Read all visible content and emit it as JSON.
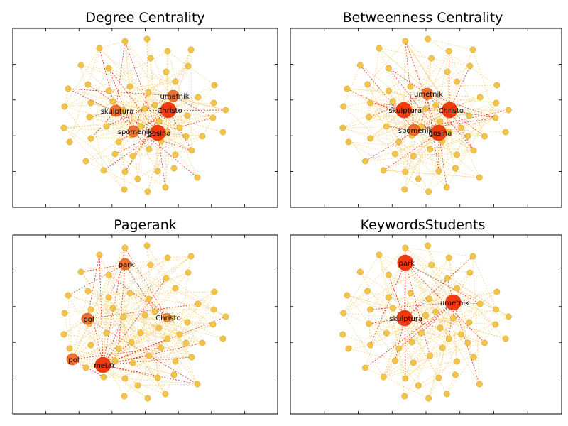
{
  "chart_data": [
    {
      "type": "network",
      "title": "Degree Centrality",
      "highlights": [
        {
          "label": "Christo",
          "size": "large"
        },
        {
          "label": "gosina",
          "size": "large"
        },
        {
          "label": "skulptura",
          "size": "medium"
        },
        {
          "label": "umetnik",
          "size": "medium"
        },
        {
          "label": "spomenik",
          "size": "medium"
        }
      ]
    },
    {
      "type": "network",
      "title": "Betweenness Centrality",
      "highlights": [
        {
          "label": "Christo",
          "size": "large"
        },
        {
          "label": "gosina",
          "size": "large"
        },
        {
          "label": "skulptura",
          "size": "large"
        },
        {
          "label": "spomenik",
          "size": "medium"
        },
        {
          "label": "umetnik",
          "size": "medium"
        }
      ]
    },
    {
      "type": "network",
      "title": "Pagerank",
      "highlights": [
        {
          "label": "metar",
          "size": "large"
        },
        {
          "label": "pol",
          "size": "medium"
        },
        {
          "label": "pol",
          "size": "medium"
        },
        {
          "label": "park",
          "size": "medium"
        },
        {
          "label": "Christo",
          "size": "small"
        }
      ]
    },
    {
      "type": "network",
      "title": "KeywordsStudents",
      "highlights": [
        {
          "label": "umetnik",
          "size": "large"
        },
        {
          "label": "skulptura",
          "size": "large"
        },
        {
          "label": "park",
          "size": "large"
        }
      ]
    }
  ],
  "colors": {
    "node_small": "#f2c44a",
    "node_edge": "#c8a030",
    "node_large": "#f03a10",
    "node_medium": "#f07030",
    "edge_light": "#f5c860",
    "edge_red": "#e03020",
    "frame": "#000000"
  }
}
